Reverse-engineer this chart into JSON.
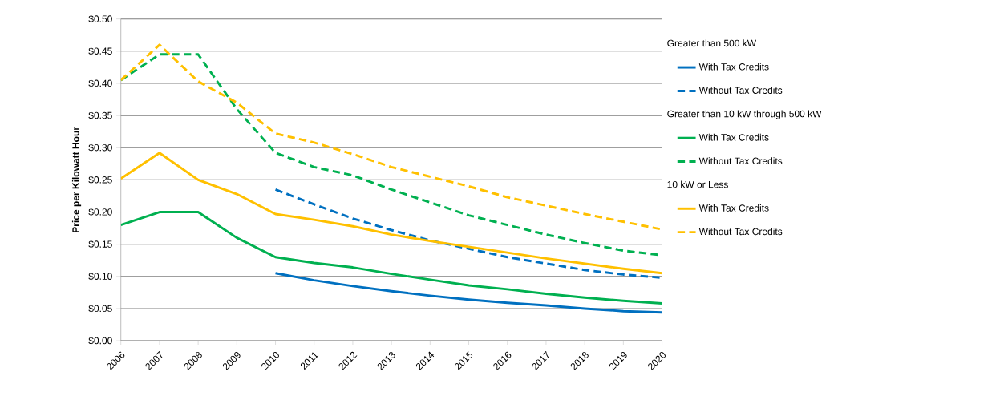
{
  "chart_data": {
    "type": "line",
    "ylabel": "Price per Kilowatt Hour",
    "categories": [
      "2006",
      "2007",
      "2008",
      "2009",
      "2010",
      "2011",
      "2012",
      "2013",
      "2014",
      "2015",
      "2016",
      "2017",
      "2018",
      "2019",
      "2020"
    ],
    "ylim": [
      0,
      0.5
    ],
    "yticks": [
      {
        "value": 0,
        "label": "$0.00"
      },
      {
        "value": 0.05,
        "label": "$0.05"
      },
      {
        "value": 0.1,
        "label": "$0.10"
      },
      {
        "value": 0.15,
        "label": "$0.15"
      },
      {
        "value": 0.2,
        "label": "$0.20"
      },
      {
        "value": 0.25,
        "label": "$0.25"
      },
      {
        "value": 0.3,
        "label": "$0.30"
      },
      {
        "value": 0.35,
        "label": "$0.35"
      },
      {
        "value": 0.4,
        "label": "$0.40"
      },
      {
        "value": 0.45,
        "label": "$0.45"
      },
      {
        "value": 0.5,
        "label": "$0.50"
      }
    ],
    "grid": "y",
    "legend": "right",
    "annotations": [
      "Greater than 500 kW",
      "Greater than 10 kW through 500 kW",
      "10 kW or Less"
    ],
    "series": [
      {
        "name": "With Tax Credits",
        "color": "#0070c0",
        "line_style": "solid",
        "values": [
          null,
          null,
          null,
          null,
          0.105,
          0.094,
          0.085,
          0.077,
          0.07,
          0.064,
          0.059,
          0.055,
          0.05,
          0.046,
          0.044
        ]
      },
      {
        "name": "Without Tax Credits",
        "color": "#0070c0",
        "line_style": "dashed",
        "values": [
          null,
          null,
          null,
          null,
          0.235,
          0.212,
          0.19,
          0.172,
          0.156,
          0.143,
          0.13,
          0.12,
          0.11,
          0.103,
          0.098
        ]
      },
      {
        "name": "With Tax Credits",
        "color": "#00b050",
        "line_style": "solid",
        "values": [
          0.18,
          0.2,
          0.2,
          0.16,
          0.13,
          0.121,
          0.114,
          0.104,
          0.095,
          0.086,
          0.08,
          0.073,
          0.067,
          0.062,
          0.058
        ]
      },
      {
        "name": "Without Tax Credits",
        "color": "#00b050",
        "line_style": "dashed",
        "values": [
          0.405,
          0.445,
          0.445,
          0.36,
          0.292,
          0.27,
          0.257,
          0.235,
          0.215,
          0.195,
          0.18,
          0.165,
          0.152,
          0.14,
          0.133
        ]
      },
      {
        "name": "With Tax Credits",
        "color": "#ffc000",
        "line_style": "solid",
        "values": [
          0.252,
          0.292,
          0.25,
          0.228,
          0.197,
          0.188,
          0.178,
          0.165,
          0.155,
          0.146,
          0.137,
          0.128,
          0.12,
          0.112,
          0.105
        ]
      },
      {
        "name": "Without Tax Credits",
        "color": "#ffc000",
        "line_style": "dashed",
        "values": [
          0.405,
          0.46,
          0.403,
          0.37,
          0.322,
          0.308,
          0.29,
          0.27,
          0.255,
          0.24,
          0.223,
          0.21,
          0.197,
          0.185,
          0.173
        ]
      }
    ]
  }
}
